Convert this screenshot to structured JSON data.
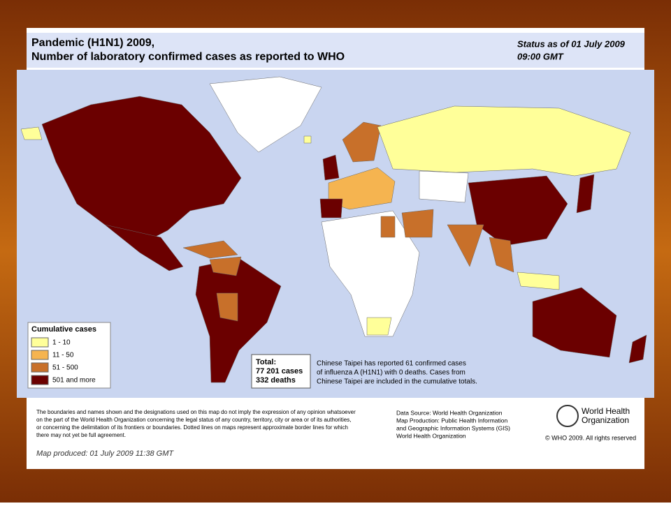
{
  "header": {
    "title_line1": "Pandemic (H1N1) 2009,",
    "title_line2": "Number of  laboratory confirmed cases as reported to WHO",
    "status_line1": "Status as of 01 July 2009",
    "status_line2": "09:00 GMT"
  },
  "legend": {
    "title": "Cumulative cases",
    "items": [
      {
        "label": "1 - 10",
        "color": "#ffff99"
      },
      {
        "label": "11 - 50",
        "color": "#f5b450"
      },
      {
        "label": "51 - 500",
        "color": "#c8702a"
      },
      {
        "label": "501 and more",
        "color": "#6b0000"
      }
    ]
  },
  "total": {
    "line1": "Total:",
    "line2": "77 201 cases",
    "line3": "332 deaths"
  },
  "note": {
    "line1": "Chinese Taipei has reported 61 confirmed cases",
    "line2": "of influenza A (H1N1) with 0 deaths. Cases from",
    "line3": "Chinese Taipei are included in the cumulative totals."
  },
  "disclaimer": {
    "lines": [
      "The boundaries and names shown and the designations used on this map do not imply the expression of any opinion whatsoever",
      "on the part of the World Health Organization concerning the legal status of any country, territory, city or area or of its authorities,",
      "or concerning the delimitation of its frontiers or boundaries.  Dotted lines on maps represent approximate border lines for which",
      "there may not yet be full agreement."
    ]
  },
  "source": {
    "lines": [
      "Data Source: World Health Organization",
      "Map Production: Public Health Information",
      "and Geographic Information Systems (GIS)",
      "World Health Organization"
    ]
  },
  "logo": {
    "line1": "World Health",
    "line2": "Organization"
  },
  "copyright": "© WHO 2009. All rights reserved",
  "produced": "Map produced: 01 July 2009 11:38 GMT"
}
